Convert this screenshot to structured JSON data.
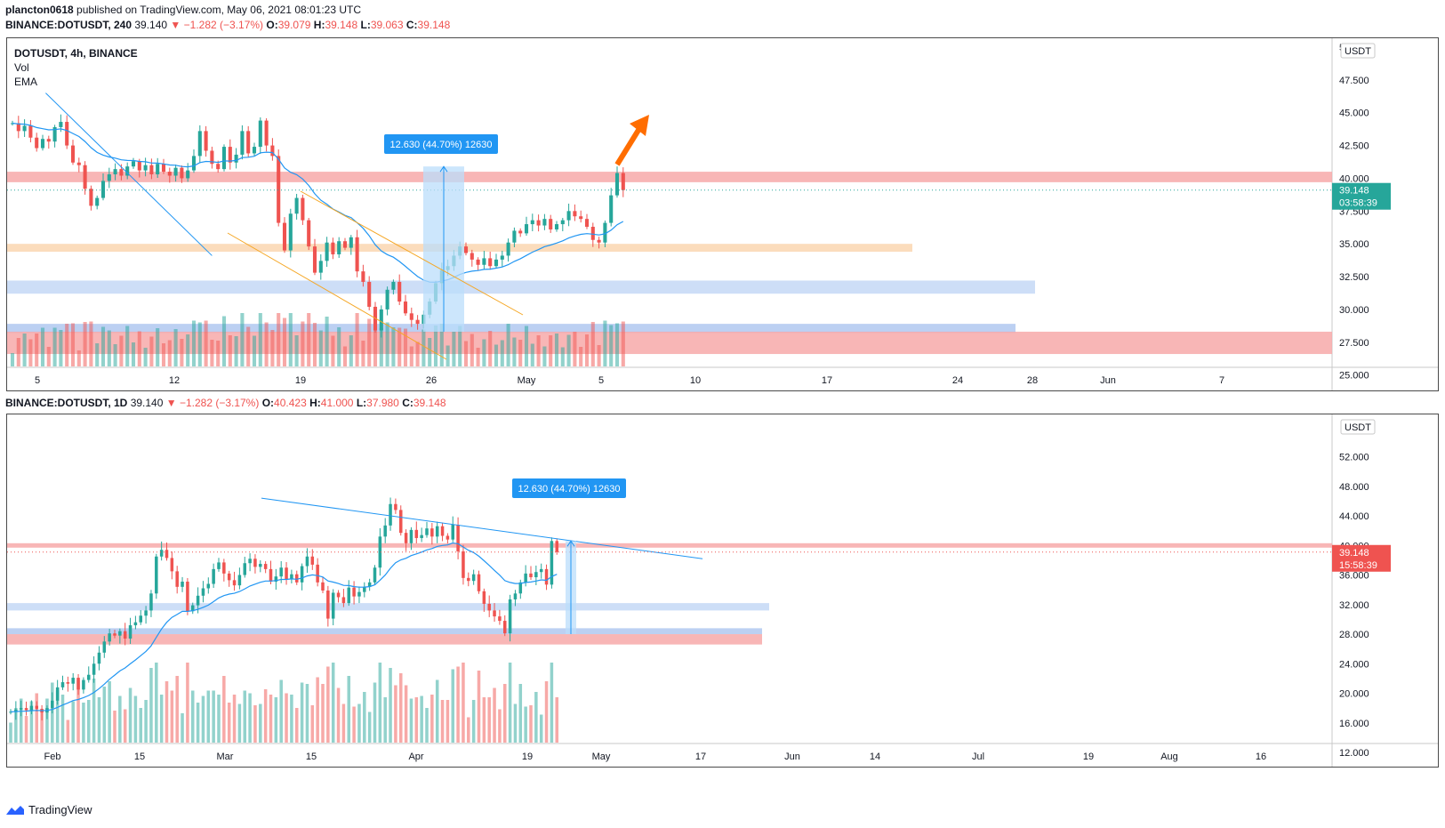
{
  "header": {
    "author": "plancton0618",
    "published": "published on TradingView.com, May 06, 2021 08:01:23 UTC"
  },
  "top": {
    "symbol_line": "BINANCE:DOTUSDT, 240",
    "last": "39.140",
    "change": "−1.282 (−3.17%)",
    "ohlc": [
      {
        "k": "O:",
        "v": "39.079"
      },
      {
        "k": "H:",
        "v": "39.148"
      },
      {
        "k": "L:",
        "v": "39.063"
      },
      {
        "k": "C:",
        "v": "39.148"
      }
    ],
    "legend": [
      "DOTUSDT, 4h, BINANCE",
      "Vol",
      "EMA"
    ],
    "currency": "USDT",
    "price_label": "39.148",
    "countdown": "03:58:39",
    "measure_label": "12.630 (44.70%) 12630",
    "colors": {
      "price_tag": "#26a69a"
    }
  },
  "bottom": {
    "symbol_line": "BINANCE:DOTUSDT, 1D",
    "last": "39.140",
    "change": "−1.282 (−3.17%)",
    "ohlc": [
      {
        "k": "O:",
        "v": "40.423"
      },
      {
        "k": "H:",
        "v": "41.000"
      },
      {
        "k": "L:",
        "v": "37.980"
      },
      {
        "k": "C:",
        "v": "39.148"
      }
    ],
    "currency": "USDT",
    "price_label": "39.148",
    "countdown": "15:58:39",
    "measure_label": "12.630 (44.70%) 12630",
    "colors": {
      "price_tag": "#ef5350"
    }
  },
  "chart_data": [
    {
      "type": "candlestick",
      "title": "DOTUSDT, 4h, BINANCE",
      "ylim": [
        24.5,
        50
      ],
      "y_ticks": [
        "5",
        "47.500",
        "45.000",
        "42.500",
        "40.000",
        "37.500",
        "35.000",
        "32.500",
        "30.000",
        "27.500",
        "25.000"
      ],
      "x_ticks": [
        "5",
        "12",
        "19",
        "26",
        "May",
        "5",
        "10",
        "17",
        "24",
        "28",
        "Jun",
        "7"
      ],
      "closes": [
        44.2,
        43.6,
        44.0,
        43.1,
        42.3,
        43.0,
        42.8,
        43.9,
        44.3,
        42.5,
        41.2,
        41.0,
        39.2,
        37.9,
        38.5,
        39.8,
        40.3,
        40.7,
        40.2,
        40.9,
        41.3,
        40.6,
        41.0,
        40.3,
        41.1,
        40.5,
        40.2,
        40.8,
        40.0,
        40.6,
        41.7,
        43.6,
        42.1,
        41.1,
        40.7,
        42.4,
        41.2,
        41.8,
        43.6,
        41.9,
        42.4,
        44.4,
        42.5,
        41.7,
        36.6,
        34.5,
        37.3,
        38.5,
        36.8,
        34.8,
        32.8,
        33.7,
        35.1,
        34.2,
        35.2,
        34.7,
        35.5,
        32.9,
        32.1,
        30.2,
        28.4,
        30.0,
        31.5,
        32.1,
        30.6,
        29.7,
        29.2,
        28.9,
        29.6,
        30.6,
        32.0,
        33.0,
        33.3,
        34.1,
        34.8,
        34.3,
        33.8,
        33.4,
        33.9,
        33.3,
        33.8,
        34.1,
        35.1,
        36.0,
        35.8,
        36.5,
        36.8,
        36.4,
        36.9,
        36.1,
        36.5,
        36.8,
        37.5,
        37.1,
        36.9,
        36.3,
        35.3,
        35.1,
        36.6,
        38.7,
        40.4,
        39.1
      ],
      "volume_max_label": "",
      "annotations": [
        {
          "kind": "trendline",
          "from": [
            5.5,
            46.5
          ],
          "to": [
            33.0,
            34.1
          ]
        },
        {
          "kind": "zone",
          "label": "",
          "ylim": [
            39.7,
            40.5
          ],
          "color": "#f7a9a9"
        },
        {
          "kind": "zone",
          "ylim": [
            34.4,
            35.0
          ],
          "color": "#fad6b0"
        },
        {
          "kind": "zone",
          "ylim": [
            31.2,
            32.2
          ],
          "color": "#c4d8f6"
        },
        {
          "kind": "zone",
          "ylim": [
            28.2,
            28.9
          ],
          "color": "#b0c8f0"
        },
        {
          "kind": "zone",
          "ylim": [
            26.6,
            28.3
          ],
          "color": "#f7a9a9"
        }
      ]
    },
    {
      "type": "candlestick",
      "title": "BINANCE:DOTUSDT, 1D",
      "ylim": [
        12,
        57
      ],
      "y_ticks": [
        "52.000",
        "48.000",
        "44.000",
        "40.000",
        "36.000",
        "32.000",
        "28.000",
        "24.000",
        "20.000",
        "16.000",
        "12.000"
      ],
      "x_ticks": [
        "Feb",
        "15",
        "Mar",
        "15",
        "Apr",
        "19",
        "May",
        "17",
        "Jun",
        "14",
        "Jul",
        "19",
        "Aug",
        "16"
      ],
      "closes": [
        17.5,
        17.8,
        18.0,
        17.7,
        18.3,
        17.9,
        17.4,
        18.0,
        19.0,
        20.8,
        21.5,
        21.3,
        22.1,
        20.5,
        21.8,
        22.5,
        24.0,
        25.5,
        27.0,
        28.1,
        27.8,
        28.4,
        27.4,
        29.2,
        29.6,
        30.5,
        31.2,
        33.5,
        38.5,
        39.4,
        38.3,
        36.5,
        34.4,
        35.1,
        31.1,
        31.9,
        33.2,
        34.2,
        34.8,
        36.8,
        37.7,
        36.2,
        35.3,
        34.6,
        36.0,
        37.6,
        38.2,
        37.1,
        37.5,
        36.8,
        35.1,
        35.8,
        37.0,
        35.4,
        36.1,
        35.0,
        37.2,
        38.5,
        37.4,
        35.0,
        33.9,
        30.1,
        33.6,
        33.0,
        32.2,
        34.3,
        33.1,
        33.7,
        34.4,
        35.0,
        37.0,
        41.2,
        42.7,
        45.6,
        44.8,
        41.7,
        40.3,
        42.1,
        41.0,
        41.4,
        42.3,
        41.2,
        42.6,
        41.3,
        40.8,
        42.8,
        39.2,
        35.6,
        35.2,
        36.1,
        33.8,
        32.1,
        31.2,
        30.4,
        29.8,
        28.1,
        32.7,
        33.5,
        35.0,
        36.2,
        35.7,
        36.4,
        36.8,
        34.7,
        40.6,
        39.1
      ],
      "annotations": [
        {
          "kind": "trendline",
          "from": [
            48.2,
            46.4
          ],
          "to": [
            133.0,
            38.2
          ]
        },
        {
          "kind": "zone",
          "ylim": [
            39.7,
            40.3
          ],
          "color": "#f7a9a9"
        },
        {
          "kind": "zone",
          "ylim": [
            31.2,
            32.2
          ],
          "color": "#c4d8f6"
        },
        {
          "kind": "zone",
          "ylim": [
            28.0,
            28.8
          ],
          "color": "#b0c8f0"
        },
        {
          "kind": "zone",
          "ylim": [
            26.6,
            28.0
          ],
          "color": "#f7a9a9"
        }
      ]
    }
  ],
  "footer": {
    "brand": "TradingView"
  }
}
